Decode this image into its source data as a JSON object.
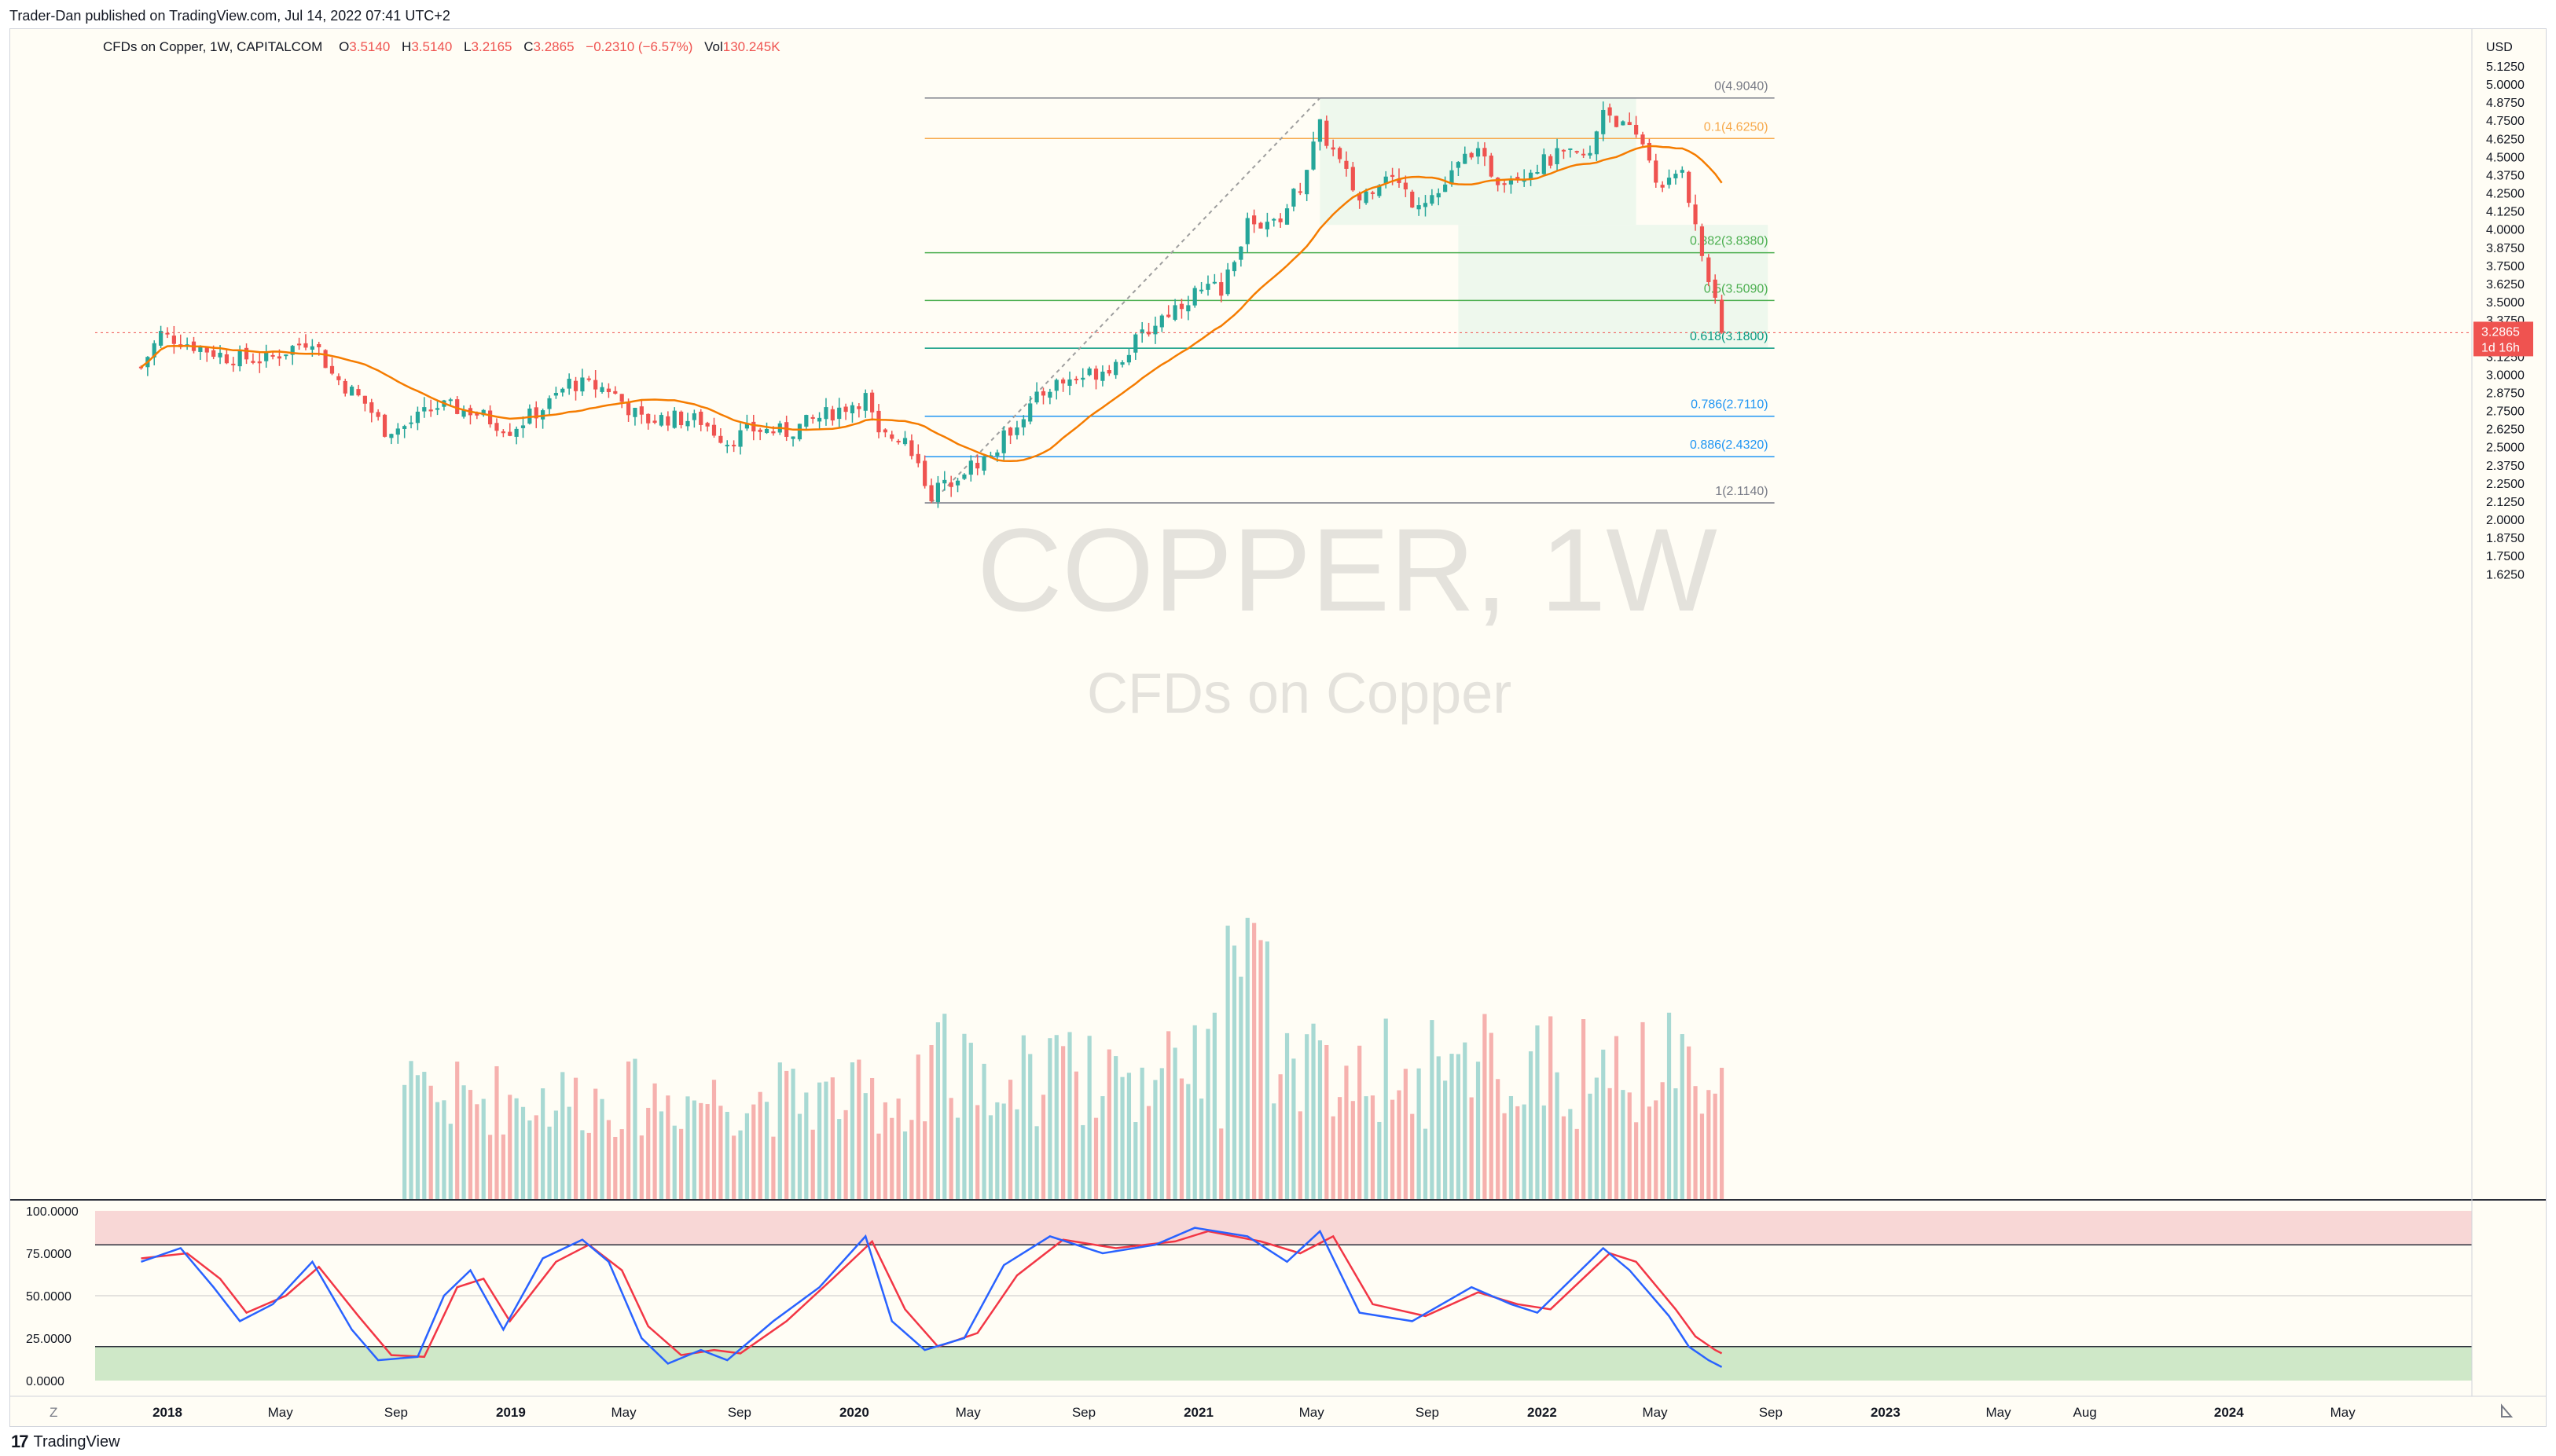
{
  "publisher": "Trader-Dan published on TradingView.com, Jul 14, 2022 07:41 UTC+2",
  "footer_brand": "TradingView",
  "footer_logo_glyph": "17",
  "colors": {
    "up": "#26a69a",
    "down": "#ef5350",
    "ma": "#f57c00",
    "rsiK": "#2962ff",
    "rsiD": "#f23645"
  },
  "chart_data": {
    "type": "candlestick",
    "header": {
      "symbol": "CFDs on Copper, 1W, CAPITALCOM",
      "o_label": "O",
      "o": "3.5140",
      "h_label": "H",
      "h": "3.5140",
      "l_label": "L",
      "l": "3.2165",
      "c_label": "C",
      "c": "3.2865",
      "change": "−0.2310 (−6.57%)",
      "vol_label": "Vol",
      "vol": "130.245K"
    },
    "watermark": {
      "line1": "COPPER, 1W",
      "line2": "CFDs on Copper"
    },
    "currency": "USD",
    "ylim": [
      1.625,
      5.375
    ],
    "y_ticks": [
      "5.2500",
      "5.1250",
      "5.0000",
      "4.8750",
      "4.7500",
      "4.6250",
      "4.5000",
      "4.3750",
      "4.2500",
      "4.1250",
      "4.0000",
      "3.8750",
      "3.7500",
      "3.6250",
      "3.5000",
      "3.3750",
      "3.1250",
      "3.0000",
      "2.8750",
      "2.7500",
      "2.6250",
      "2.5000",
      "2.3750",
      "2.2500",
      "2.1250",
      "2.0000",
      "1.8750",
      "1.7500",
      "1.6250"
    ],
    "x_ticks": [
      {
        "label": "2018",
        "date": "2018-01-01"
      },
      {
        "label": "May",
        "date": "2018-05-01"
      },
      {
        "label": "Sep",
        "date": "2018-09-01"
      },
      {
        "label": "2019",
        "date": "2019-01-01"
      },
      {
        "label": "May",
        "date": "2019-05-01"
      },
      {
        "label": "Sep",
        "date": "2019-09-01"
      },
      {
        "label": "2020",
        "date": "2020-01-01"
      },
      {
        "label": "May",
        "date": "2020-05-01"
      },
      {
        "label": "Sep",
        "date": "2020-09-01"
      },
      {
        "label": "2021",
        "date": "2021-01-01"
      },
      {
        "label": "May",
        "date": "2021-05-01"
      },
      {
        "label": "Sep",
        "date": "2021-09-01"
      },
      {
        "label": "2022",
        "date": "2022-01-01"
      },
      {
        "label": "May",
        "date": "2022-05-01"
      },
      {
        "label": "Sep",
        "date": "2022-09-01"
      },
      {
        "label": "2023",
        "date": "2023-01-01"
      },
      {
        "label": "May",
        "date": "2023-05-01"
      },
      {
        "label": "Aug",
        "date": "2023-08-01"
      },
      {
        "label": "2024",
        "date": "2024-01-01"
      },
      {
        "label": "May",
        "date": "2024-05-01"
      }
    ],
    "last_price": {
      "value": 3.2865,
      "label": "3.2865",
      "countdown": "1d 16h"
    },
    "fib_levels": [
      {
        "label": "0(4.9040)",
        "value": 4.904,
        "color": "#787b86"
      },
      {
        "label": "0.1(4.6250)",
        "value": 4.625,
        "color": "#f7a94b"
      },
      {
        "label": "0.382(3.8380)",
        "value": 3.838,
        "color": "#4caf50"
      },
      {
        "label": "0.5(3.5090)",
        "value": 3.509,
        "color": "#4caf50"
      },
      {
        "label": "0.618(3.1800)",
        "value": 3.18,
        "color": "#089981"
      },
      {
        "label": "0.786(2.7110)",
        "value": 2.711,
        "color": "#2196f3"
      },
      {
        "label": "0.886(2.4320)",
        "value": 2.432,
        "color": "#2196f3"
      },
      {
        "label": "1(2.1140)",
        "value": 2.114,
        "color": "#787b86"
      }
    ],
    "fib_start_date": "2020-03-16",
    "fib_end_date": "2022-09-05",
    "trend_line": {
      "from": {
        "date": "2020-03-23",
        "value": 2.114
      },
      "to": {
        "date": "2021-05-10",
        "value": 4.904
      }
    },
    "zones": [
      {
        "from": "2021-05-10",
        "to": "2022-04-11",
        "low": 4.03,
        "high": 4.904
      },
      {
        "from": "2021-10-04",
        "to": "2022-08-29",
        "low": 3.18,
        "high": 4.03
      }
    ],
    "price_points": [
      {
        "date": "2017-12-04",
        "close": 3.05
      },
      {
        "date": "2017-12-25",
        "close": 3.28
      },
      {
        "date": "2018-01-29",
        "close": 3.2
      },
      {
        "date": "2018-03-05",
        "close": 3.12
      },
      {
        "date": "2018-04-16",
        "close": 3.1
      },
      {
        "date": "2018-06-04",
        "close": 3.25
      },
      {
        "date": "2018-06-25",
        "close": 3.0
      },
      {
        "date": "2018-07-30",
        "close": 2.8
      },
      {
        "date": "2018-08-20",
        "close": 2.62
      },
      {
        "date": "2018-09-10",
        "close": 2.64
      },
      {
        "date": "2018-10-15",
        "close": 2.78
      },
      {
        "date": "2018-11-19",
        "close": 2.75
      },
      {
        "date": "2018-12-31",
        "close": 2.62
      },
      {
        "date": "2019-02-11",
        "close": 2.8
      },
      {
        "date": "2019-03-04",
        "close": 2.94
      },
      {
        "date": "2019-04-15",
        "close": 2.9
      },
      {
        "date": "2019-05-20",
        "close": 2.68
      },
      {
        "date": "2019-06-17",
        "close": 2.7
      },
      {
        "date": "2019-07-22",
        "close": 2.68
      },
      {
        "date": "2019-08-19",
        "close": 2.54
      },
      {
        "date": "2019-09-16",
        "close": 2.62
      },
      {
        "date": "2019-10-21",
        "close": 2.6
      },
      {
        "date": "2019-12-02",
        "close": 2.72
      },
      {
        "date": "2020-01-13",
        "close": 2.84
      },
      {
        "date": "2020-01-27",
        "close": 2.56
      },
      {
        "date": "2020-02-24",
        "close": 2.58
      },
      {
        "date": "2020-03-23",
        "close": 2.17
      },
      {
        "date": "2020-04-20",
        "close": 2.32
      },
      {
        "date": "2020-05-25",
        "close": 2.44
      },
      {
        "date": "2020-06-22",
        "close": 2.68
      },
      {
        "date": "2020-07-27",
        "close": 2.92
      },
      {
        "date": "2020-09-07",
        "close": 3.0
      },
      {
        "date": "2020-10-05",
        "close": 3.08
      },
      {
        "date": "2020-11-23",
        "close": 3.4
      },
      {
        "date": "2020-12-28",
        "close": 3.56
      },
      {
        "date": "2021-01-25",
        "close": 3.6
      },
      {
        "date": "2021-02-22",
        "close": 4.05
      },
      {
        "date": "2021-03-22",
        "close": 4.02
      },
      {
        "date": "2021-04-19",
        "close": 4.3
      },
      {
        "date": "2021-05-10",
        "close": 4.7
      },
      {
        "date": "2021-06-21",
        "close": 4.2
      },
      {
        "date": "2021-07-19",
        "close": 4.4
      },
      {
        "date": "2021-08-16",
        "close": 4.2
      },
      {
        "date": "2021-09-13",
        "close": 4.25
      },
      {
        "date": "2021-10-18",
        "close": 4.55
      },
      {
        "date": "2021-11-15",
        "close": 4.35
      },
      {
        "date": "2021-12-13",
        "close": 4.4
      },
      {
        "date": "2022-01-17",
        "close": 4.5
      },
      {
        "date": "2022-02-21",
        "close": 4.5
      },
      {
        "date": "2022-03-07",
        "close": 4.85
      },
      {
        "date": "2022-03-28",
        "close": 4.7
      },
      {
        "date": "2022-04-18",
        "close": 4.6
      },
      {
        "date": "2022-05-09",
        "close": 4.25
      },
      {
        "date": "2022-05-30",
        "close": 4.45
      },
      {
        "date": "2022-06-13",
        "close": 4.0
      },
      {
        "date": "2022-06-27",
        "close": 3.65
      },
      {
        "date": "2022-07-11",
        "close": 3.2865
      }
    ],
    "volume_ylim": [
      0,
      1.0
    ],
    "volume_note_first_date": "2018-09-10",
    "rsi": {
      "ylim": [
        0,
        100
      ],
      "y_ticks": [
        "100.0000",
        "75.0000",
        "50.0000",
        "25.0000",
        "0.0000"
      ],
      "upper_band": 80,
      "lower_band": 20,
      "k_points": [
        {
          "date": "2017-12-04",
          "value": 70
        },
        {
          "date": "2018-01-15",
          "value": 78
        },
        {
          "date": "2018-02-19",
          "value": 55
        },
        {
          "date": "2018-03-19",
          "value": 35
        },
        {
          "date": "2018-04-23",
          "value": 45
        },
        {
          "date": "2018-06-04",
          "value": 70
        },
        {
          "date": "2018-07-16",
          "value": 30
        },
        {
          "date": "2018-08-13",
          "value": 12
        },
        {
          "date": "2018-09-24",
          "value": 14
        },
        {
          "date": "2018-10-22",
          "value": 50
        },
        {
          "date": "2018-11-19",
          "value": 65
        },
        {
          "date": "2018-12-24",
          "value": 30
        },
        {
          "date": "2019-02-04",
          "value": 72
        },
        {
          "date": "2019-03-18",
          "value": 83
        },
        {
          "date": "2019-04-15",
          "value": 70
        },
        {
          "date": "2019-05-20",
          "value": 25
        },
        {
          "date": "2019-06-17",
          "value": 10
        },
        {
          "date": "2019-07-22",
          "value": 18
        },
        {
          "date": "2019-08-19",
          "value": 12
        },
        {
          "date": "2019-10-07",
          "value": 35
        },
        {
          "date": "2019-11-25",
          "value": 55
        },
        {
          "date": "2020-01-13",
          "value": 85
        },
        {
          "date": "2020-02-10",
          "value": 35
        },
        {
          "date": "2020-03-16",
          "value": 18
        },
        {
          "date": "2020-04-27",
          "value": 25
        },
        {
          "date": "2020-06-08",
          "value": 68
        },
        {
          "date": "2020-07-27",
          "value": 85
        },
        {
          "date": "2020-09-21",
          "value": 75
        },
        {
          "date": "2020-11-16",
          "value": 80
        },
        {
          "date": "2020-12-28",
          "value": 90
        },
        {
          "date": "2021-02-22",
          "value": 85
        },
        {
          "date": "2021-04-05",
          "value": 70
        },
        {
          "date": "2021-05-10",
          "value": 88
        },
        {
          "date": "2021-06-21",
          "value": 40
        },
        {
          "date": "2021-08-16",
          "value": 35
        },
        {
          "date": "2021-10-18",
          "value": 55
        },
        {
          "date": "2021-11-29",
          "value": 45
        },
        {
          "date": "2021-12-27",
          "value": 40
        },
        {
          "date": "2022-03-07",
          "value": 78
        },
        {
          "date": "2022-04-04",
          "value": 65
        },
        {
          "date": "2022-05-16",
          "value": 38
        },
        {
          "date": "2022-06-06",
          "value": 20
        },
        {
          "date": "2022-06-27",
          "value": 12
        },
        {
          "date": "2022-07-11",
          "value": 8
        }
      ],
      "d_points": [
        {
          "date": "2017-12-04",
          "value": 72
        },
        {
          "date": "2018-01-22",
          "value": 75
        },
        {
          "date": "2018-02-26",
          "value": 60
        },
        {
          "date": "2018-03-26",
          "value": 40
        },
        {
          "date": "2018-05-07",
          "value": 50
        },
        {
          "date": "2018-06-11",
          "value": 67
        },
        {
          "date": "2018-07-23",
          "value": 38
        },
        {
          "date": "2018-08-27",
          "value": 15
        },
        {
          "date": "2018-10-01",
          "value": 14
        },
        {
          "date": "2018-11-05",
          "value": 55
        },
        {
          "date": "2018-12-03",
          "value": 60
        },
        {
          "date": "2018-12-31",
          "value": 35
        },
        {
          "date": "2019-02-18",
          "value": 70
        },
        {
          "date": "2019-03-25",
          "value": 80
        },
        {
          "date": "2019-04-29",
          "value": 65
        },
        {
          "date": "2019-05-27",
          "value": 32
        },
        {
          "date": "2019-07-01",
          "value": 15
        },
        {
          "date": "2019-08-05",
          "value": 18
        },
        {
          "date": "2019-09-02",
          "value": 16
        },
        {
          "date": "2019-10-21",
          "value": 35
        },
        {
          "date": "2019-12-09",
          "value": 60
        },
        {
          "date": "2020-01-20",
          "value": 82
        },
        {
          "date": "2020-02-24",
          "value": 42
        },
        {
          "date": "2020-03-30",
          "value": 20
        },
        {
          "date": "2020-05-11",
          "value": 28
        },
        {
          "date": "2020-06-22",
          "value": 62
        },
        {
          "date": "2020-08-10",
          "value": 83
        },
        {
          "date": "2020-10-05",
          "value": 78
        },
        {
          "date": "2020-12-07",
          "value": 82
        },
        {
          "date": "2021-01-11",
          "value": 88
        },
        {
          "date": "2021-03-08",
          "value": 82
        },
        {
          "date": "2021-04-19",
          "value": 75
        },
        {
          "date": "2021-05-24",
          "value": 85
        },
        {
          "date": "2021-07-05",
          "value": 45
        },
        {
          "date": "2021-08-30",
          "value": 38
        },
        {
          "date": "2021-10-25",
          "value": 52
        },
        {
          "date": "2021-12-06",
          "value": 45
        },
        {
          "date": "2022-01-10",
          "value": 42
        },
        {
          "date": "2022-03-14",
          "value": 75
        },
        {
          "date": "2022-04-11",
          "value": 70
        },
        {
          "date": "2022-05-23",
          "value": 42
        },
        {
          "date": "2022-06-13",
          "value": 26
        },
        {
          "date": "2022-07-04",
          "value": 18
        },
        {
          "date": "2022-07-11",
          "value": 16
        }
      ]
    },
    "time_axis_icon": "Z"
  }
}
